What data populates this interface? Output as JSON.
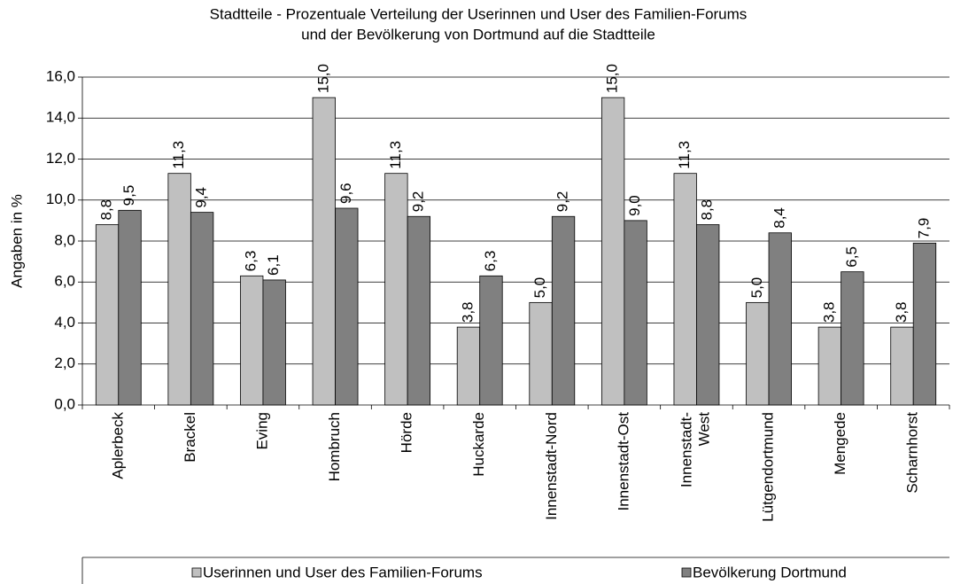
{
  "chart_data": {
    "type": "bar",
    "title": [
      "Stadtteile - Prozentuale Verteilung der Userinnen und User des Familien-Forums",
      "und der Bevölkerung von Dortmund auf die Stadtteile"
    ],
    "y_label": "Angaben in %",
    "categories": [
      "Aplerbeck",
      "Brackel",
      "Eving",
      "Hombruch",
      "Hörde",
      "Huckarde",
      "Innenstadt-Nord",
      "Innenstadt-Ost",
      "Innenstadt-\nWest",
      "Lütgendortmund",
      "Mengede",
      "Scharnhorst"
    ],
    "series": [
      {
        "name": "Userinnen und User des Familien-Forums",
        "color": "#c0c0c0",
        "values": [
          8.8,
          11.3,
          6.3,
          15.0,
          11.3,
          3.8,
          5.0,
          15.0,
          11.3,
          5.0,
          3.8,
          3.8
        ],
        "value_labels": [
          "8,8",
          "11,3",
          "6,3",
          "15,0",
          "11,3",
          "3,8",
          "5,0",
          "15,0",
          "11,3",
          "5,0",
          "3,8",
          "3,8"
        ]
      },
      {
        "name": "Bevölkerung Dortmund",
        "color": "#808080",
        "values": [
          9.5,
          9.4,
          6.1,
          9.6,
          9.2,
          6.3,
          9.2,
          9.0,
          8.8,
          8.4,
          6.5,
          7.9
        ],
        "value_labels": [
          "9,5",
          "9,4",
          "6,1",
          "9,6",
          "9,2",
          "6,3",
          "9,2",
          "9,0",
          "8,8",
          "8,4",
          "6,5",
          "7,9"
        ]
      }
    ],
    "ylim": [
      0,
      16
    ],
    "yticks": [
      {
        "value": 0,
        "label": "0,0"
      },
      {
        "value": 2,
        "label": "2,0"
      },
      {
        "value": 4,
        "label": "4,0"
      },
      {
        "value": 6,
        "label": "6,0"
      },
      {
        "value": 8,
        "label": "8,0"
      },
      {
        "value": 10,
        "label": "10,0"
      },
      {
        "value": 12,
        "label": "12,0"
      },
      {
        "value": 14,
        "label": "14,0"
      },
      {
        "value": 16,
        "label": "16,0"
      }
    ],
    "grid": true,
    "legend": "bottom"
  }
}
